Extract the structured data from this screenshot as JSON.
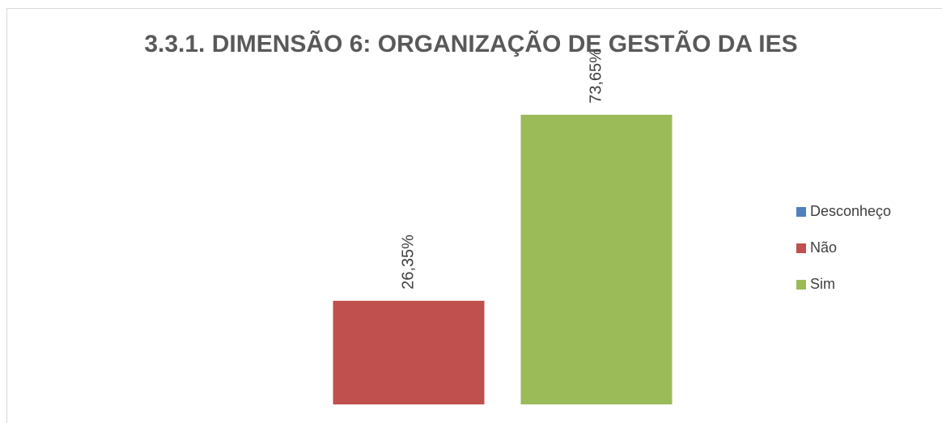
{
  "chart_data": {
    "type": "bar",
    "title": "3.3.1. DIMENSÃO 6: ORGANIZAÇÃO DE GESTÃO DA IES",
    "categories": [
      null
    ],
    "series": [
      {
        "name": "Desconheço",
        "color": "#4f81bd",
        "values": [
          null
        ]
      },
      {
        "name": "Não",
        "color": "#c0504d",
        "values": [
          26.35
        ],
        "value_labels": [
          "26,35%"
        ]
      },
      {
        "name": "Sim",
        "color": "#9bbb59",
        "values": [
          73.65
        ],
        "value_labels": [
          "73,65%"
        ]
      }
    ],
    "ylim": [
      0,
      80
    ],
    "legend": "right"
  }
}
